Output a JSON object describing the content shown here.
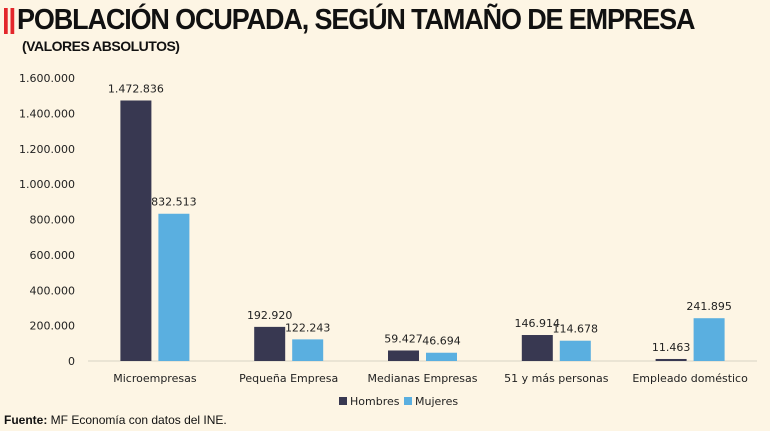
{
  "title": "POBLACIÓN OCUPADA, SEGÚN TAMAÑO DE EMPRESA",
  "subtitle": "(VALORES ABSOLUTOS)",
  "source": {
    "label": "Fuente:",
    "text": " MF Economía con datos del INE."
  },
  "chart_data": {
    "type": "bar",
    "title": "POBLACIÓN OCUPADA, SEGÚN TAMAÑO DE EMPRESA",
    "subtitle": "(VALORES ABSOLUTOS)",
    "categories": [
      "Microempresas",
      "Pequeña Empresa",
      "Medianas Empresas",
      "51 y más personas",
      "Empleado doméstico"
    ],
    "series": [
      {
        "name": "Hombres",
        "color": "#383851",
        "values": [
          1472836,
          192920,
          59427,
          146914,
          11463
        ],
        "labels": [
          "1.472.836",
          "192.920",
          "59.427",
          "146.914",
          "11.463"
        ]
      },
      {
        "name": "Mujeres",
        "color": "#5aafe0",
        "values": [
          832513,
          122243,
          46694,
          114678,
          241895
        ],
        "labels": [
          "832.513",
          "122.243",
          "46.694",
          "114.678",
          "241.895"
        ]
      }
    ],
    "ylim": [
      0,
      1600000
    ],
    "yticks": [
      0,
      200000,
      400000,
      600000,
      800000,
      1000000,
      1200000,
      1400000,
      1600000
    ],
    "ytick_labels": [
      "0",
      "200.000",
      "400.000",
      "600.000",
      "800.000",
      "1.000.000",
      "1.200.000",
      "1.400.000",
      "1.600.000"
    ],
    "grid": false,
    "legend": "bottom"
  }
}
